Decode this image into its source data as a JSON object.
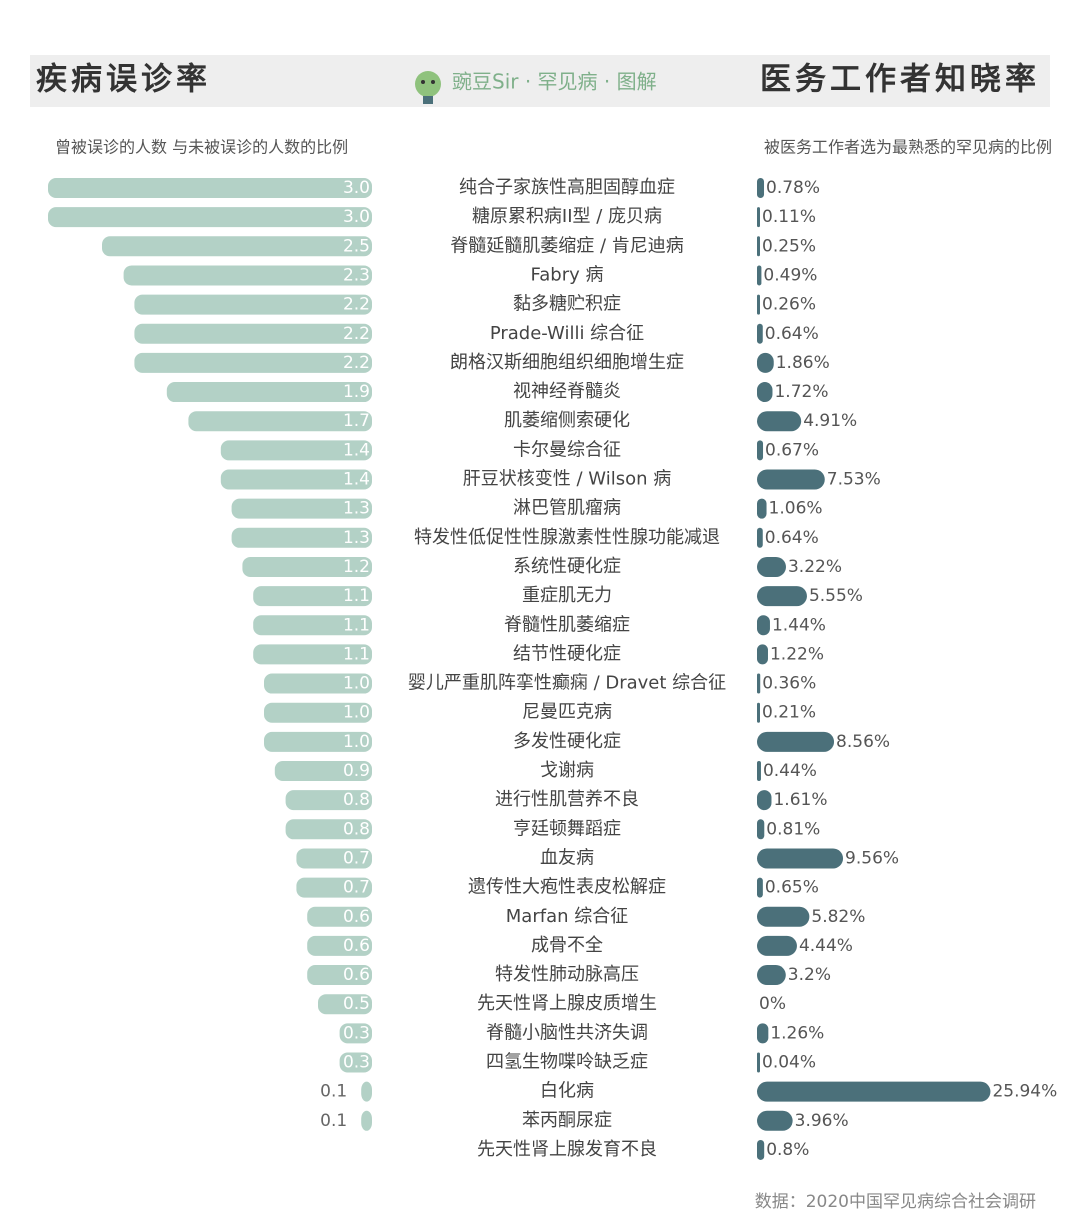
{
  "header": {
    "left_title": "疾病误诊率",
    "brand": "豌豆Sir · 罕见病 · 图解",
    "right_title": "医务工作者知晓率"
  },
  "chart_data": {
    "type": "butterfly",
    "categories": [
      "纯合子家族性高胆固醇血症",
      "糖原累积病II型 / 庞贝病",
      "脊髓延髓肌萎缩症 / 肯尼迪病",
      "Fabry 病",
      "黏多糖贮积症",
      "Prade-Willi 综合征",
      "朗格汉斯细胞组织细胞增生症",
      "视神经脊髓炎",
      "肌萎缩侧索硬化",
      "卡尔曼综合征",
      "肝豆状核变性 / Wilson 病",
      "淋巴管肌瘤病",
      "特发性低促性性腺激素性性腺功能减退",
      "系统性硬化症",
      "重症肌无力",
      "脊髓性肌萎缩症",
      "结节性硬化症",
      "婴儿严重肌阵挛性癫痫 / Dravet 综合征",
      "尼曼匹克病",
      "多发性硬化症",
      "戈谢病",
      "进行性肌营养不良",
      "亨廷顿舞蹈症",
      "血友病",
      "遗传性大疱性表皮松解症",
      "Marfan 综合征",
      "成骨不全",
      "特发性肺动脉高压",
      "先天性肾上腺皮质增生",
      "脊髓小脑性共济失调",
      "四氢生物喋呤缺乏症",
      "白化病",
      "苯丙酮尿症",
      "先天性肾上腺发育不良"
    ],
    "series": [
      {
        "name": "曾被误诊的人数 与未被误诊的人数的比例",
        "color": "#b3d1c6",
        "values": [
          3.0,
          3.0,
          2.5,
          2.3,
          2.2,
          2.2,
          2.2,
          1.9,
          1.7,
          1.4,
          1.4,
          1.3,
          1.3,
          1.2,
          1.1,
          1.1,
          1.1,
          1.0,
          1.0,
          1.0,
          0.9,
          0.8,
          0.8,
          0.7,
          0.7,
          0.6,
          0.6,
          0.6,
          0.5,
          0.3,
          0.3,
          0.1,
          0.1,
          null
        ],
        "value_labels": [
          "3.0",
          "3.0",
          "2.5",
          "2.3",
          "2.2",
          "2.2",
          "2.2",
          "1.9",
          "1.7",
          "1.4",
          "1.4",
          "1.3",
          "1.3",
          "1.2",
          "1.1",
          "1.1",
          "1.1",
          "1.0",
          "1.0",
          "1.0",
          "0.9",
          "0.8",
          "0.8",
          "0.7",
          "0.7",
          "0.6",
          "0.6",
          "0.6",
          "0.5",
          "0.3",
          "0.3",
          "0.1",
          "0.1",
          null
        ]
      },
      {
        "name": "被医务工作者选为最熟悉的罕见病的比例",
        "color": "#4b707a",
        "values": [
          0.78,
          0.11,
          0.25,
          0.49,
          0.26,
          0.64,
          1.86,
          1.72,
          4.91,
          0.67,
          7.53,
          1.06,
          0.64,
          3.22,
          5.55,
          1.44,
          1.22,
          0.36,
          0.21,
          8.56,
          0.44,
          1.61,
          0.81,
          9.56,
          0.65,
          5.82,
          4.44,
          3.2,
          0,
          1.26,
          0.04,
          25.94,
          3.96,
          0.8
        ],
        "value_labels": [
          "0.78%",
          "0.11%",
          "0.25%",
          "0.49%",
          "0.26%",
          "0.64%",
          "1.86%",
          "1.72%",
          "4.91%",
          "0.67%",
          "7.53%",
          "1.06%",
          "0.64%",
          "3.22%",
          "5.55%",
          "1.44%",
          "1.22%",
          "0.36%",
          "0.21%",
          "8.56%",
          "0.44%",
          "1.61%",
          "0.81%",
          "9.56%",
          "0.65%",
          "5.82%",
          "4.44%",
          "3.2%",
          "0%",
          "1.26%",
          "0.04%",
          "25.94%",
          "3.96%",
          "0.8%"
        ]
      }
    ]
  },
  "source": "数据：2020中国罕见病综合社会调研"
}
